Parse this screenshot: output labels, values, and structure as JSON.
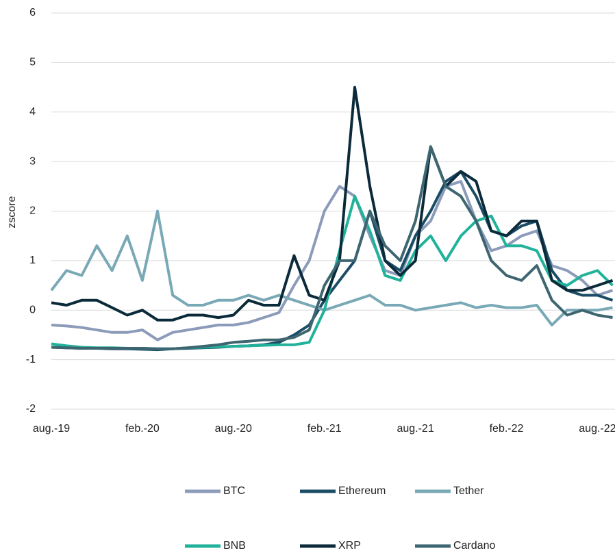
{
  "chart_data": {
    "type": "line",
    "y_label": "zscore",
    "categories": [
      "aug.-19",
      null,
      null,
      null,
      null,
      null,
      "feb.-20",
      null,
      null,
      null,
      null,
      null,
      "aug.-20",
      null,
      null,
      null,
      null,
      null,
      "feb.-21",
      null,
      null,
      null,
      null,
      null,
      "aug.-21",
      null,
      null,
      null,
      null,
      null,
      "feb.-22",
      null,
      null,
      null,
      null,
      null,
      "aug.-22",
      null
    ],
    "series": [
      {
        "name": "BTC",
        "color": "#8c9bb9",
        "values": [
          -0.3,
          -0.32,
          -0.35,
          -0.4,
          -0.45,
          -0.45,
          -0.4,
          -0.6,
          -0.45,
          -0.4,
          -0.35,
          -0.3,
          -0.3,
          -0.25,
          -0.15,
          -0.05,
          0.5,
          1.0,
          2.0,
          2.5,
          2.3,
          1.5,
          0.8,
          0.7,
          1.5,
          1.8,
          2.5,
          2.6,
          1.8,
          1.2,
          1.3,
          1.5,
          1.6,
          0.9,
          0.8,
          0.6,
          0.3,
          0.4
        ]
      },
      {
        "name": "Ethereum",
        "color": "#1b4c66",
        "values": [
          -0.75,
          -0.76,
          -0.77,
          -0.77,
          -0.78,
          -0.78,
          -0.79,
          -0.8,
          -0.78,
          -0.77,
          -0.76,
          -0.75,
          -0.73,
          -0.72,
          -0.7,
          -0.65,
          -0.5,
          -0.3,
          0.2,
          0.6,
          1.0,
          2.0,
          1.0,
          0.8,
          1.5,
          2.0,
          2.6,
          2.8,
          2.3,
          1.6,
          1.5,
          1.7,
          1.8,
          0.8,
          0.4,
          0.3,
          0.3,
          0.2
        ]
      },
      {
        "name": "Tether",
        "color": "#79a9b6",
        "values": [
          0.4,
          0.8,
          0.7,
          1.3,
          0.8,
          1.5,
          0.6,
          2.0,
          0.3,
          0.1,
          0.1,
          0.2,
          0.2,
          0.3,
          0.2,
          0.3,
          0.2,
          0.1,
          0.0,
          0.1,
          0.2,
          0.3,
          0.1,
          0.1,
          0.0,
          0.05,
          0.1,
          0.15,
          0.05,
          0.1,
          0.05,
          0.05,
          0.1,
          -0.3,
          0.0,
          0.0,
          0.0,
          0.05
        ]
      },
      {
        "name": "BNB",
        "color": "#20b29a",
        "values": [
          -0.68,
          -0.72,
          -0.75,
          -0.76,
          -0.76,
          -0.77,
          -0.77,
          -0.78,
          -0.78,
          -0.76,
          -0.75,
          -0.74,
          -0.73,
          -0.72,
          -0.71,
          -0.7,
          -0.7,
          -0.65,
          0.0,
          1.2,
          2.3,
          1.6,
          0.7,
          0.6,
          1.2,
          1.5,
          1.0,
          1.5,
          1.8,
          1.9,
          1.3,
          1.3,
          1.2,
          0.6,
          0.5,
          0.7,
          0.8,
          0.5
        ]
      },
      {
        "name": "XRP",
        "color": "#0b2a3a",
        "values": [
          0.15,
          0.1,
          0.2,
          0.2,
          0.05,
          -0.1,
          0.0,
          -0.2,
          -0.2,
          -0.1,
          -0.1,
          -0.15,
          -0.1,
          0.2,
          0.1,
          0.1,
          1.1,
          0.3,
          0.2,
          1.0,
          4.5,
          2.5,
          1.0,
          0.7,
          1.0,
          3.3,
          2.5,
          2.8,
          2.6,
          1.6,
          1.5,
          1.8,
          1.8,
          0.6,
          0.4,
          0.4,
          0.5,
          0.6
        ]
      },
      {
        "name": "Cardano",
        "color": "#3e6670",
        "values": [
          -0.75,
          -0.76,
          -0.77,
          -0.77,
          -0.77,
          -0.77,
          -0.77,
          -0.78,
          -0.78,
          -0.76,
          -0.73,
          -0.7,
          -0.65,
          -0.63,
          -0.6,
          -0.6,
          -0.55,
          -0.4,
          0.5,
          1.0,
          1.0,
          2.0,
          1.3,
          1.0,
          1.8,
          3.3,
          2.5,
          2.3,
          1.8,
          1.0,
          0.7,
          0.6,
          0.9,
          0.2,
          -0.1,
          0.0,
          -0.1,
          -0.15
        ]
      }
    ],
    "ylim": [
      -2,
      6
    ],
    "yticks": [
      -2,
      -1,
      0,
      1,
      2,
      3,
      4,
      5,
      6
    ],
    "grid": true,
    "legend": "bottom"
  }
}
